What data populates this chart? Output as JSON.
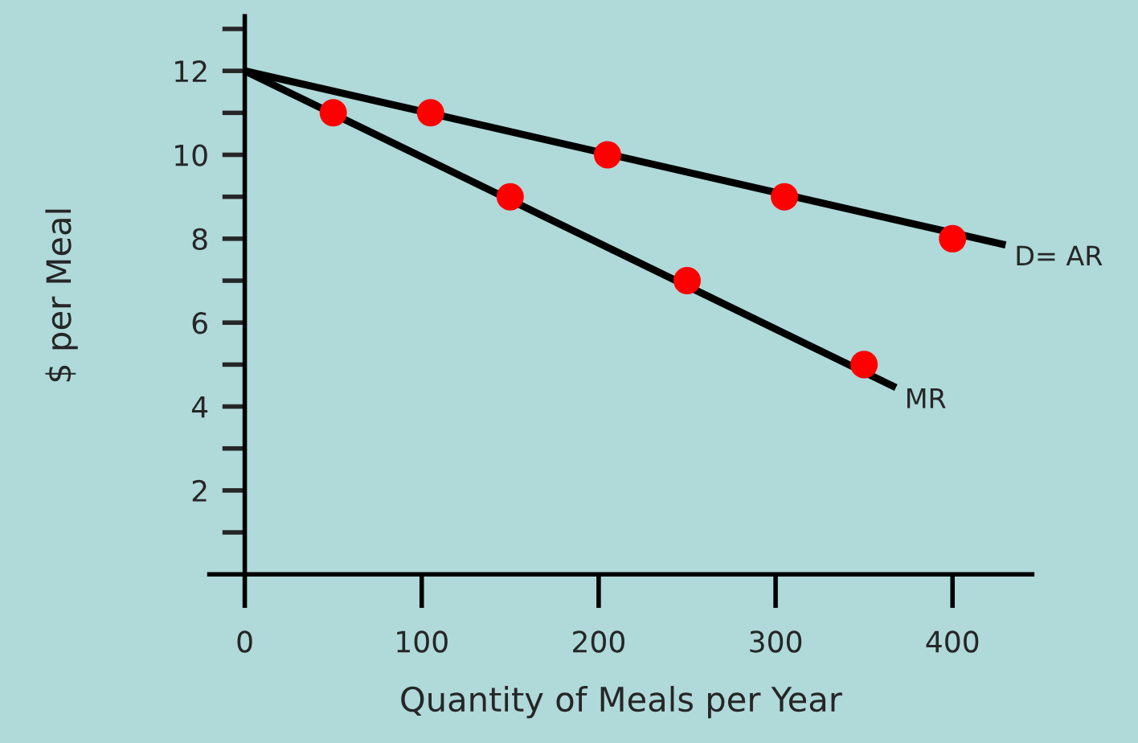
{
  "chart_data": {
    "type": "line",
    "xlabel": "Quantity of Meals per Year",
    "ylabel": "$ per Meal",
    "xlim": [
      -20,
      445
    ],
    "ylim": [
      0,
      13.3
    ],
    "xticks": [
      {
        "value": 0,
        "label": "0"
      },
      100,
      200,
      300,
      400
    ],
    "yticks": [
      {
        "value": 1,
        "label": null
      },
      2,
      {
        "value": 3,
        "label": null
      },
      4,
      {
        "value": 5,
        "label": null
      },
      6,
      {
        "value": 7,
        "label": null
      },
      8,
      {
        "value": 9,
        "label": null
      },
      10,
      {
        "value": 11,
        "label": null
      },
      12,
      {
        "value": 13,
        "label": null
      }
    ],
    "grid": false,
    "series": [
      {
        "name": "D= AR",
        "color": "#000000",
        "x": [
          0,
          430
        ],
        "values": [
          12,
          7.85
        ]
      },
      {
        "name": "MR",
        "color": "#000000",
        "x": [
          0,
          368
        ],
        "values": [
          12,
          4.45
        ]
      },
      {
        "type": "scatter",
        "marker": "circle",
        "color": "#ff0000",
        "x": [
          105,
          205,
          305,
          400
        ],
        "values": [
          11,
          10,
          9,
          8
        ]
      },
      {
        "type": "scatter",
        "marker": "circle",
        "color": "#ff0000",
        "x": [
          50,
          150,
          250,
          350
        ],
        "values": [
          11,
          9,
          7,
          5
        ]
      }
    ]
  }
}
